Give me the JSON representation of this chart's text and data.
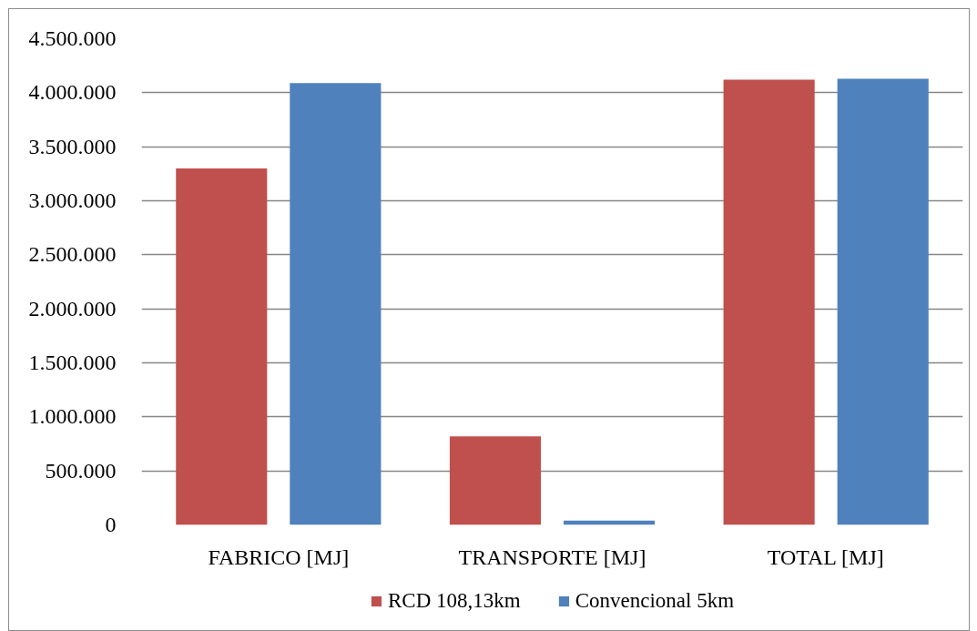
{
  "chart_data": {
    "type": "bar",
    "categories": [
      "FABRICO [MJ]",
      "TRANSPORTE [MJ]",
      "TOTAL [MJ]"
    ],
    "series": [
      {
        "name": "RCD 108,13km",
        "color": "#c0504d",
        "values": [
          3300000,
          820000,
          4120000
        ]
      },
      {
        "name": "Convencional 5km",
        "color": "#4f81bd",
        "values": [
          4090000,
          40000,
          4130000
        ]
      }
    ],
    "ylim": [
      0,
      4500000
    ],
    "yticks": [
      0,
      {
        "value": 500000,
        "label": "500.000"
      },
      {
        "value": 1000000,
        "label": "1.000.000"
      },
      {
        "value": 1500000,
        "label": "1.500.000"
      },
      {
        "value": 2000000,
        "label": "2.000.000"
      },
      {
        "value": 2500000,
        "label": "2.500.000"
      },
      {
        "value": 3000000,
        "label": "3.000.000"
      },
      {
        "value": 3500000,
        "label": "3.500.000"
      },
      {
        "value": 4000000,
        "label": "4.000.000"
      },
      {
        "value": 4500000,
        "label": "4.500.000"
      }
    ],
    "grid": "y",
    "legend": "bottom"
  }
}
